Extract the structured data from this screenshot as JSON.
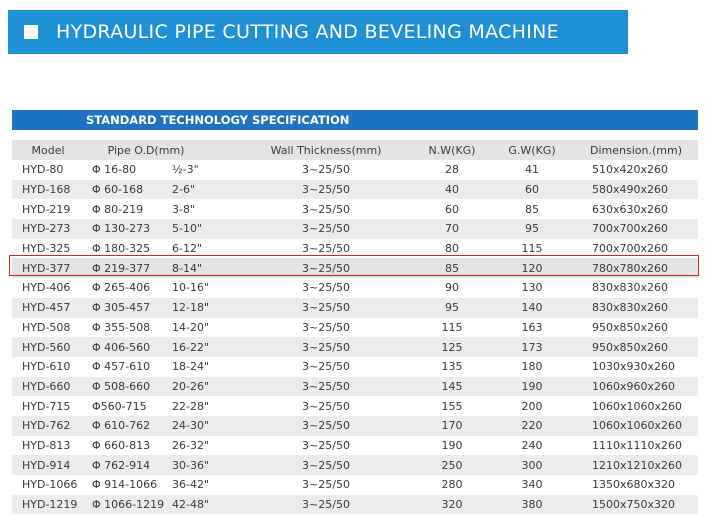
{
  "header": {
    "title": "HYDRAULIC PIPE CUTTING AND BEVELING MACHINE"
  },
  "section": {
    "title": "STANDARD TECHNOLOGY SPECIFICATION"
  },
  "table": {
    "columns": [
      "Model",
      "Pipe O.D(mm)",
      "Wall Thickness(mm)",
      "N.W(KG)",
      "G.W(KG)",
      "Dimension.(mm)"
    ],
    "rows": [
      {
        "model": "HYD-80",
        "od_mm": "Φ 16-80",
        "od_in": "½-3\"",
        "wall": "3~25/50",
        "nw": "28",
        "gw": "41",
        "dim": "510x420x260"
      },
      {
        "model": "HYD-168",
        "od_mm": "Φ 60-168",
        "od_in": "2-6\"",
        "wall": "3~25/50",
        "nw": "40",
        "gw": "60",
        "dim": "580x490x260"
      },
      {
        "model": "HYD-219",
        "od_mm": "Φ 80-219",
        "od_in": "3-8\"",
        "wall": "3~25/50",
        "nw": "60",
        "gw": "85",
        "dim": "630x630x260"
      },
      {
        "model": "HYD-273",
        "od_mm": "Φ 130-273",
        "od_in": "5-10\"",
        "wall": "3~25/50",
        "nw": "70",
        "gw": "95",
        "dim": "700x700x260"
      },
      {
        "model": "HYD-325",
        "od_mm": "Φ 180-325",
        "od_in": "6-12\"",
        "wall": "3~25/50",
        "nw": "80",
        "gw": "115",
        "dim": "700x700x260"
      },
      {
        "model": "HYD-377",
        "od_mm": "Φ 219-377",
        "od_in": "8-14\"",
        "wall": "3~25/50",
        "nw": "85",
        "gw": "120",
        "dim": "780x780x260"
      },
      {
        "model": "HYD-406",
        "od_mm": "Φ 265-406",
        "od_in": "10-16\"",
        "wall": "3~25/50",
        "nw": "90",
        "gw": "130",
        "dim": "830x830x260"
      },
      {
        "model": "HYD-457",
        "od_mm": "Φ 305-457",
        "od_in": "12-18\"",
        "wall": "3~25/50",
        "nw": "95",
        "gw": "140",
        "dim": "830x830x260"
      },
      {
        "model": "HYD-508",
        "od_mm": "Φ 355-508",
        "od_in": "14-20\"",
        "wall": "3~25/50",
        "nw": "115",
        "gw": "163",
        "dim": "950x850x260"
      },
      {
        "model": "HYD-560",
        "od_mm": "Φ 406-560",
        "od_in": "16-22\"",
        "wall": "3~25/50",
        "nw": "125",
        "gw": "173",
        "dim": "950x850x260"
      },
      {
        "model": "HYD-610",
        "od_mm": "Φ 457-610",
        "od_in": "18-24\"",
        "wall": "3~25/50",
        "nw": "135",
        "gw": "180",
        "dim": "1030x930x260"
      },
      {
        "model": "HYD-660",
        "od_mm": "Φ 508-660",
        "od_in": "20-26\"",
        "wall": "3~25/50",
        "nw": "145",
        "gw": "190",
        "dim": "1060x960x260"
      },
      {
        "model": "HYD-715",
        "od_mm": "Φ560-715",
        "od_in": "22-28\"",
        "wall": "3~25/50",
        "nw": "155",
        "gw": "200",
        "dim": "1060x1060x260"
      },
      {
        "model": "HYD-762",
        "od_mm": "Φ 610-762",
        "od_in": "24-30\"",
        "wall": "3~25/50",
        "nw": "170",
        "gw": "220",
        "dim": "1060x1060x260"
      },
      {
        "model": "HYD-813",
        "od_mm": "Φ 660-813",
        "od_in": "26-32\"",
        "wall": "3~25/50",
        "nw": "190",
        "gw": "240",
        "dim": "1110x1110x260"
      },
      {
        "model": "HYD-914",
        "od_mm": "Φ 762-914",
        "od_in": "30-36\"",
        "wall": "3~25/50",
        "nw": "250",
        "gw": "300",
        "dim": "1210x1210x260"
      },
      {
        "model": "HYD-1066",
        "od_mm": "Φ 914-1066",
        "od_in": "36-42\"",
        "wall": "3~25/50",
        "nw": "280",
        "gw": "340",
        "dim": "1350x680x320"
      },
      {
        "model": "HYD-1219",
        "od_mm": "Φ 1066-1219",
        "od_in": "42-48\"",
        "wall": "3~25/50",
        "nw": "320",
        "gw": "380",
        "dim": "1500x750x320"
      }
    ]
  },
  "highlighted_row_model": "HYD-377",
  "colors": {
    "header_blue": "#1f8fd6",
    "section_blue": "#1f73c4",
    "highlight_red": "#e02020"
  }
}
